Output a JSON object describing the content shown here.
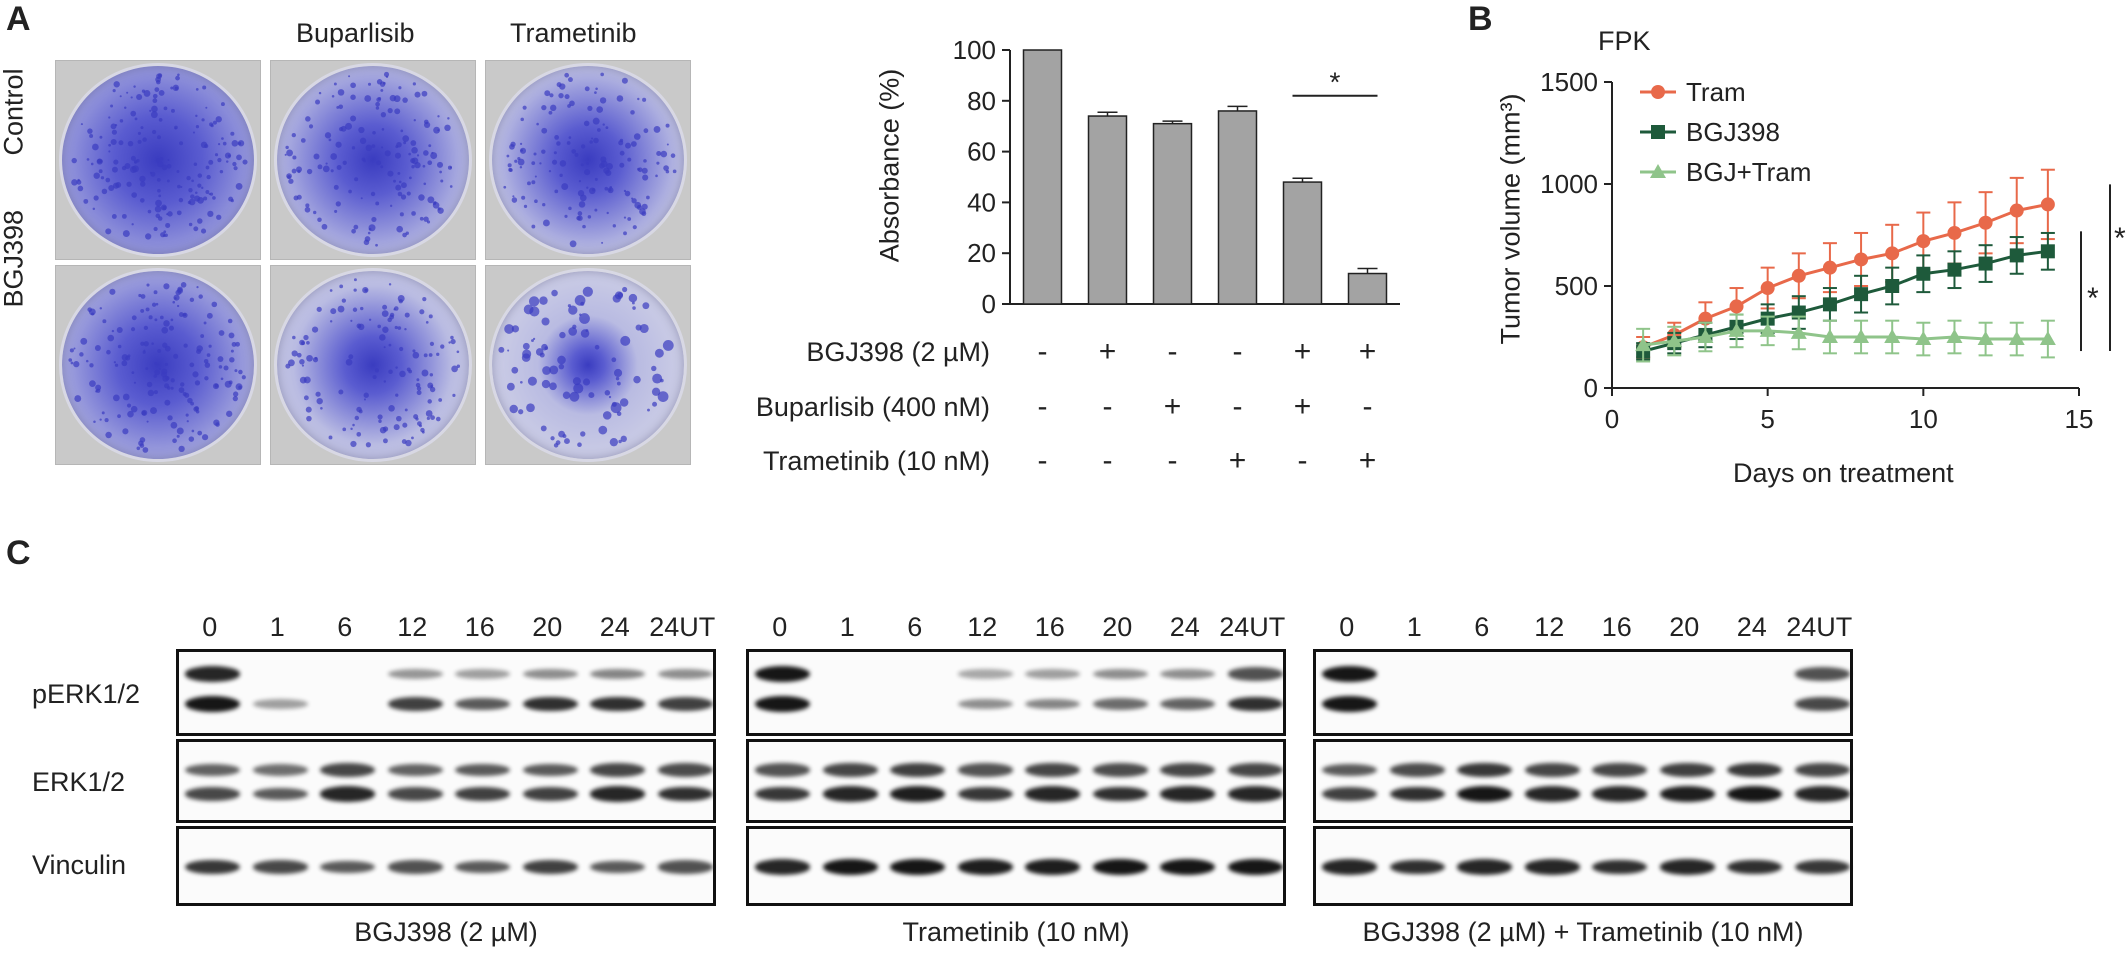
{
  "panels": {
    "a": "A",
    "b": "B",
    "c": "C"
  },
  "panelA": {
    "col_headers": [
      "Buparlisib",
      "Trametinib"
    ],
    "row_headers": [
      "Control",
      "BGJ398"
    ],
    "dish_color": "#3a3cc0",
    "treatment_rows": [
      {
        "label": "BGJ398 (2 µM)",
        "marks": [
          "-",
          "+",
          "-",
          "-",
          "+",
          "+"
        ]
      },
      {
        "label": "Buparlisib (400 nM)",
        "marks": [
          "-",
          "-",
          "+",
          "-",
          "+",
          "-"
        ]
      },
      {
        "label": "Trametinib (10 nM)",
        "marks": [
          "-",
          "-",
          "-",
          "+",
          "-",
          "+"
        ]
      }
    ]
  },
  "chart_data": [
    {
      "type": "bar",
      "panel": "A",
      "ylabel": "Absorbance (%)",
      "ylim": [
        0,
        100
      ],
      "yticks": [
        0,
        20,
        40,
        60,
        80,
        100
      ],
      "values": [
        100,
        74,
        71,
        76,
        48,
        12
      ],
      "errors": [
        0,
        1.5,
        1,
        1.8,
        1.5,
        2
      ],
      "bar_color": "#a3a3a3",
      "significance": {
        "between": [
          4,
          5
        ],
        "label": "*"
      }
    },
    {
      "type": "line",
      "panel": "B",
      "title": "FPK",
      "xlabel": "Days on treatment",
      "ylabel": "Tumor volume (mm³)",
      "xlim": [
        0,
        15
      ],
      "ylim": [
        0,
        1500
      ],
      "xticks": [
        0,
        5,
        10,
        15
      ],
      "yticks": [
        0,
        500,
        1000,
        1500
      ],
      "x": [
        1,
        2,
        3,
        4,
        5,
        6,
        7,
        8,
        9,
        10,
        11,
        12,
        13,
        14
      ],
      "legend_position": "top-left",
      "series": [
        {
          "name": "Tram",
          "color": "#e8694a",
          "marker": "circle",
          "values": [
            200,
            260,
            340,
            400,
            490,
            550,
            590,
            630,
            660,
            720,
            760,
            810,
            870,
            900
          ],
          "errors": [
            50,
            60,
            80,
            90,
            100,
            110,
            120,
            130,
            140,
            140,
            150,
            150,
            160,
            170
          ]
        },
        {
          "name": "BGJ398",
          "color": "#1e5a3b",
          "marker": "square",
          "values": [
            180,
            220,
            260,
            300,
            340,
            370,
            410,
            460,
            500,
            560,
            580,
            610,
            650,
            670
          ],
          "errors": [
            40,
            50,
            60,
            60,
            70,
            80,
            80,
            90,
            90,
            90,
            90,
            90,
            90,
            90
          ]
        },
        {
          "name": "BGJ+Tram",
          "color": "#8fc48a",
          "marker": "triangle",
          "values": [
            210,
            230,
            250,
            280,
            280,
            270,
            250,
            250,
            250,
            240,
            250,
            240,
            240,
            240
          ],
          "errors": [
            80,
            70,
            70,
            80,
            70,
            80,
            80,
            80,
            80,
            80,
            80,
            80,
            80,
            90
          ]
        }
      ],
      "significance": [
        "*",
        "*"
      ]
    }
  ],
  "panelC": {
    "row_labels": [
      "pERK1/2",
      "ERK1/2",
      "Vinculin"
    ],
    "groups": [
      {
        "title": "BGJ398 (2 µM)",
        "lanes": [
          "0",
          "1",
          "6",
          "12",
          "16",
          "20",
          "24",
          "24UT"
        ],
        "perk_upper": [
          0.9,
          0.0,
          0.0,
          0.25,
          0.2,
          0.3,
          0.35,
          0.3
        ],
        "perk_lower": [
          1.0,
          0.2,
          0.0,
          0.75,
          0.6,
          0.85,
          0.85,
          0.75
        ]
      },
      {
        "title": "Trametinib (10 nM)",
        "lanes": [
          "0",
          "1",
          "6",
          "12",
          "16",
          "20",
          "24",
          "24UT"
        ],
        "perk_upper": [
          1.0,
          0.0,
          0.0,
          0.15,
          0.2,
          0.3,
          0.3,
          0.65
        ],
        "perk_lower": [
          1.0,
          0.0,
          0.0,
          0.3,
          0.35,
          0.5,
          0.55,
          0.85
        ]
      },
      {
        "title": "BGJ398 (2 µM) + Trametinib (10 nM)",
        "lanes": [
          "0",
          "1",
          "6",
          "12",
          "16",
          "20",
          "24",
          "24UT"
        ],
        "perk_upper": [
          1.0,
          0.0,
          0.0,
          0.0,
          0.0,
          0.0,
          0.0,
          0.65
        ],
        "perk_lower": [
          1.0,
          0.0,
          0.0,
          0.0,
          0.0,
          0.0,
          0.0,
          0.7
        ]
      }
    ]
  }
}
